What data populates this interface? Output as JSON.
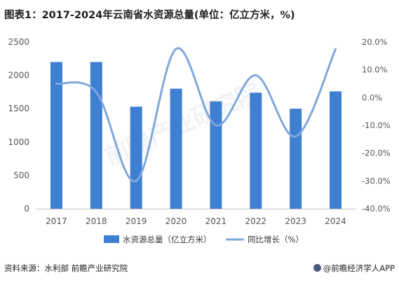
{
  "title": "图表1：2017-2024年云南省水资源总量(单位：亿立方米，%)",
  "source": "资料来源：水利部 前瞻产业研究院",
  "brand": "@前瞻经济学人APP",
  "watermark": "前瞻产业研究院",
  "colors": {
    "bar": "#3f7fd1",
    "line": "#7fa8dc",
    "axis": "#555555",
    "grid": "#d9d9d9"
  },
  "chart_data": {
    "type": "bar",
    "categories": [
      "2017",
      "2018",
      "2019",
      "2020",
      "2021",
      "2022",
      "2023",
      "2024"
    ],
    "series": [
      {
        "name": "水资源总量（亿立方米）",
        "type": "bar",
        "axis": "left",
        "values": [
          2200,
          2200,
          1530,
          1800,
          1610,
          1740,
          1500,
          1760
        ]
      },
      {
        "name": "同比增长（%）",
        "type": "line",
        "axis": "right",
        "smooth": true,
        "values": [
          5.0,
          2.0,
          -30.0,
          17.5,
          -10.0,
          8.0,
          -14.0,
          17.5
        ]
      }
    ],
    "y_left": {
      "ylim": [
        0,
        2500
      ],
      "ticks": [
        0,
        500,
        1000,
        1500,
        2000,
        2500
      ]
    },
    "y_right": {
      "ylim": [
        -40,
        20
      ],
      "ticks": [
        "20.0%",
        "10.0%",
        "0.0%",
        "-10.0%",
        "-20.0%",
        "-30.0%",
        "-40.0%"
      ]
    },
    "legend_position": "bottom",
    "grid": false
  }
}
